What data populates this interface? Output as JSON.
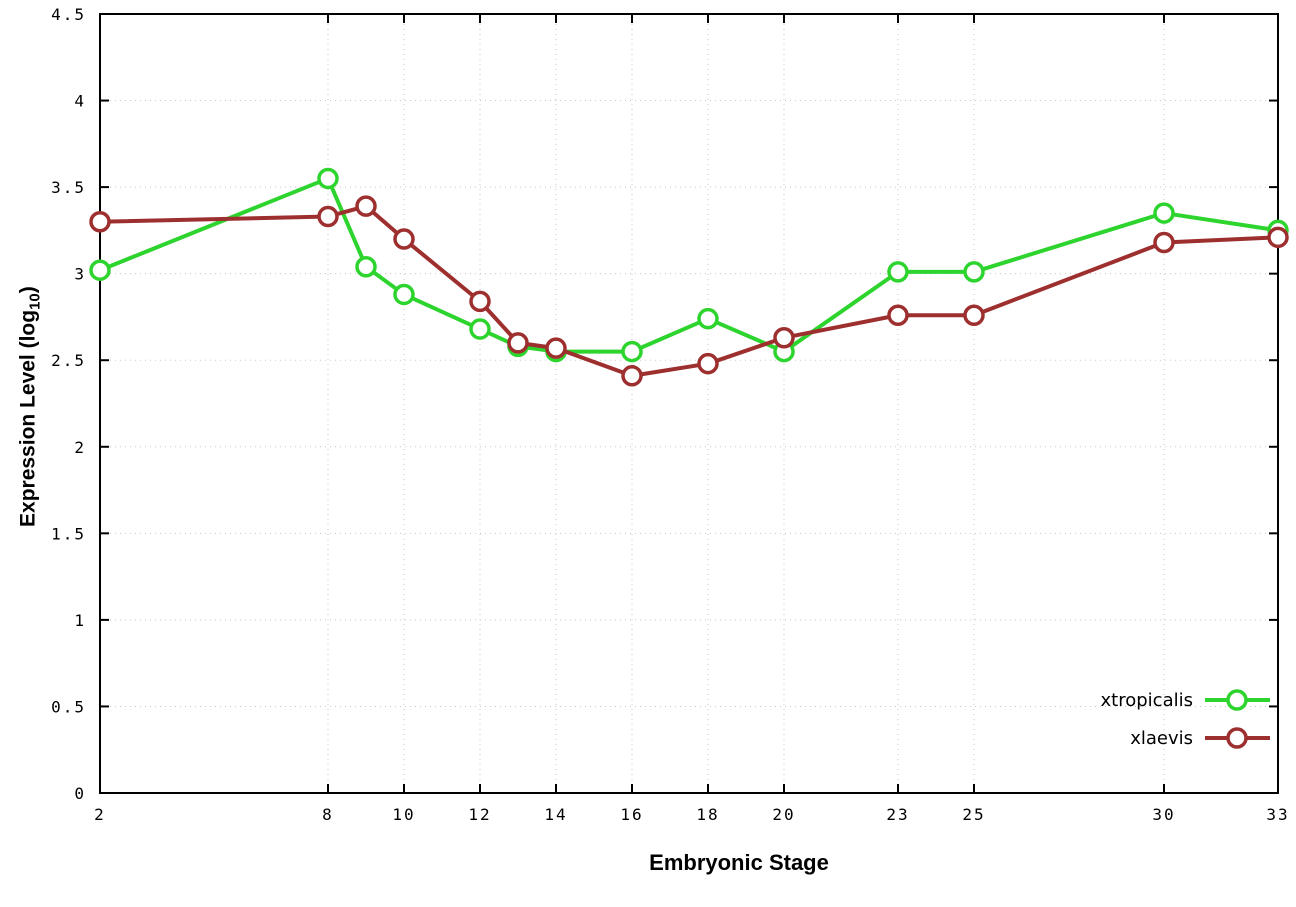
{
  "chart_data": {
    "type": "line",
    "title": "",
    "xlabel": "Embryonic Stage",
    "ylabel": "Expression Level (log10)",
    "x": [
      2,
      8,
      9,
      10,
      12,
      13,
      14,
      16,
      18,
      20,
      23,
      25,
      30,
      33
    ],
    "xticks": [
      2,
      8,
      10,
      12,
      14,
      16,
      18,
      20,
      23,
      25,
      30,
      33
    ],
    "xlim": [
      2,
      33
    ],
    "ylim": [
      0,
      4.5
    ],
    "ytick_step": 0.5,
    "grid": true,
    "legend_position": "bottom-right",
    "series": [
      {
        "name": "xtropicalis",
        "color": "#2ed42e",
        "values": [
          3.02,
          3.55,
          3.04,
          2.88,
          2.68,
          2.58,
          2.55,
          2.55,
          2.74,
          2.55,
          3.01,
          3.01,
          3.35,
          3.25
        ]
      },
      {
        "name": "xlaevis",
        "color": "#9e2f2f",
        "values": [
          3.3,
          3.33,
          3.39,
          3.2,
          2.84,
          2.6,
          2.57,
          2.41,
          2.48,
          2.63,
          2.76,
          2.76,
          3.18,
          3.21
        ]
      }
    ]
  },
  "axes": {
    "x_label": "Embryonic Stage",
    "y_label_pre": "Expression Level (log",
    "y_label_sub": "10",
    "y_label_post": ")"
  },
  "legend": {
    "items": [
      {
        "label": "xtropicalis",
        "color": "#2ed42e"
      },
      {
        "label": "xlaevis",
        "color": "#9e2f2f"
      }
    ]
  },
  "style": {
    "grid_color": "#c8c8c8",
    "border_color": "#000000",
    "background": "#ffffff"
  }
}
